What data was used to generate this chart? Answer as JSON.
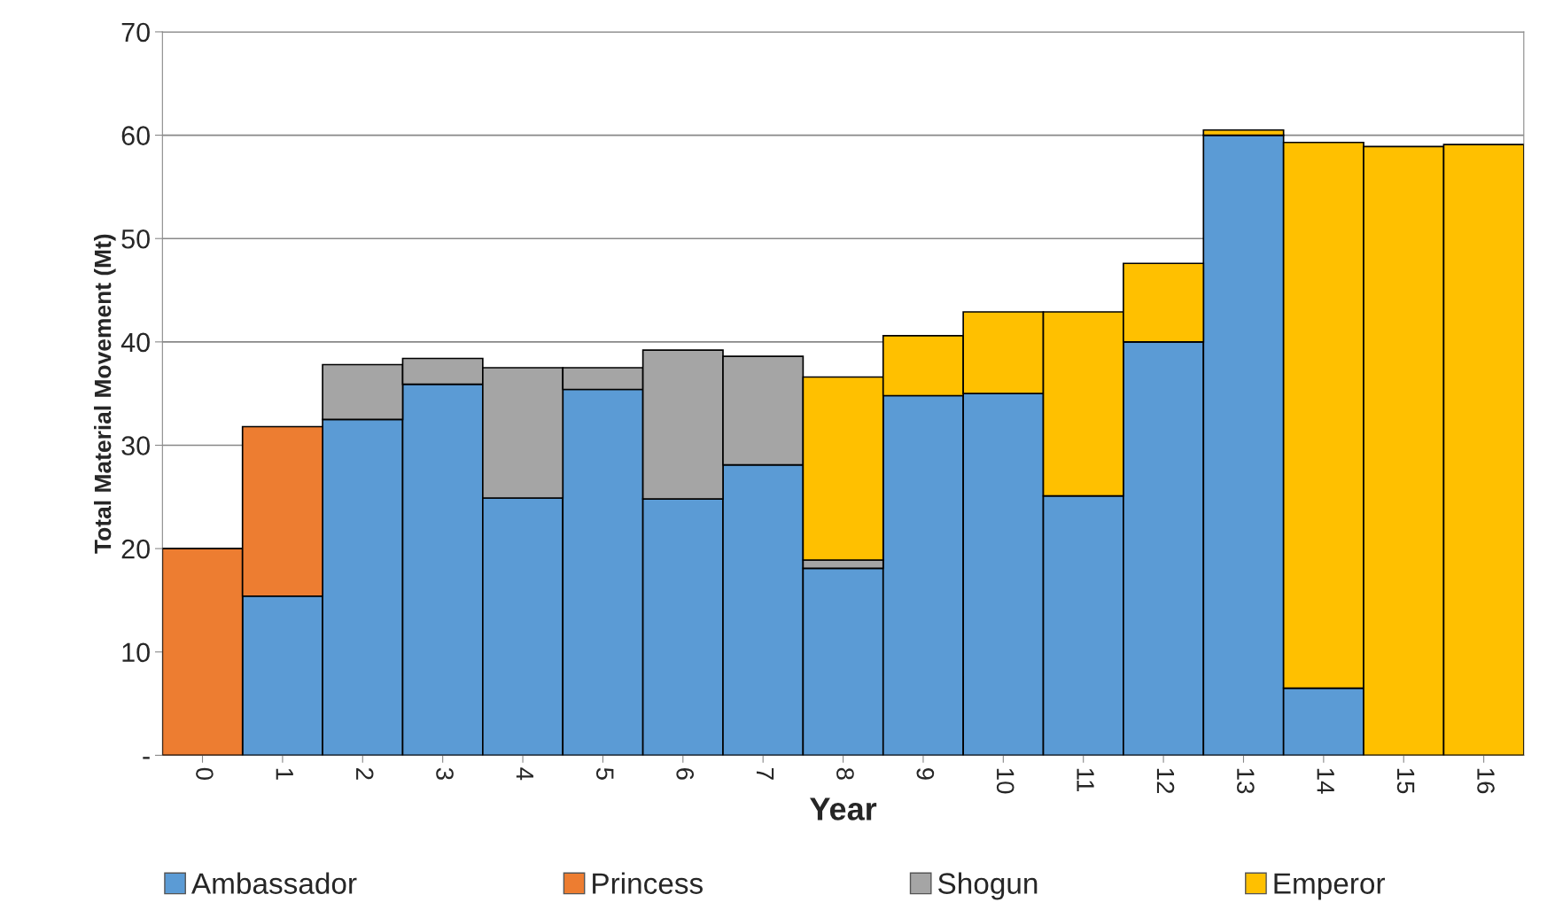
{
  "chart_data": {
    "type": "bar",
    "stacked": true,
    "xlabel": "Year",
    "ylabel": "Total Material Movement (Mt)",
    "categories": [
      "0",
      "1",
      "2",
      "3",
      "4",
      "5",
      "6",
      "7",
      "8",
      "9",
      "10",
      "11",
      "12",
      "13",
      "14",
      "15",
      "16"
    ],
    "series": [
      {
        "name": "Ambassador",
        "color": "#5b9bd5",
        "values": [
          null,
          15.4,
          32.5,
          35.9,
          24.9,
          35.4,
          24.8,
          28.1,
          18.1,
          34.8,
          35.0,
          25.1,
          40.0,
          60.0,
          6.5,
          null,
          null
        ]
      },
      {
        "name": "Princess",
        "color": "#ed7d31",
        "values": [
          20.0,
          16.4,
          null,
          null,
          null,
          null,
          null,
          null,
          null,
          null,
          null,
          null,
          null,
          null,
          null,
          null,
          null
        ]
      },
      {
        "name": "Shogun",
        "color": "#a5a5a5",
        "values": [
          null,
          null,
          5.3,
          2.5,
          12.6,
          2.1,
          14.4,
          10.5,
          0.8,
          null,
          null,
          null,
          null,
          null,
          null,
          null,
          null
        ]
      },
      {
        "name": "Emperor",
        "color": "#ffc000",
        "values": [
          null,
          null,
          null,
          null,
          null,
          null,
          null,
          null,
          17.7,
          5.8,
          7.9,
          17.8,
          7.6,
          0.5,
          52.8,
          58.9,
          59.1
        ]
      }
    ],
    "ylim": [
      0,
      70
    ],
    "yticks": [
      {
        "value": 0,
        "label": "-"
      },
      10,
      20,
      30,
      40,
      50,
      60,
      70
    ],
    "grid": "y",
    "legend": "bottom"
  }
}
